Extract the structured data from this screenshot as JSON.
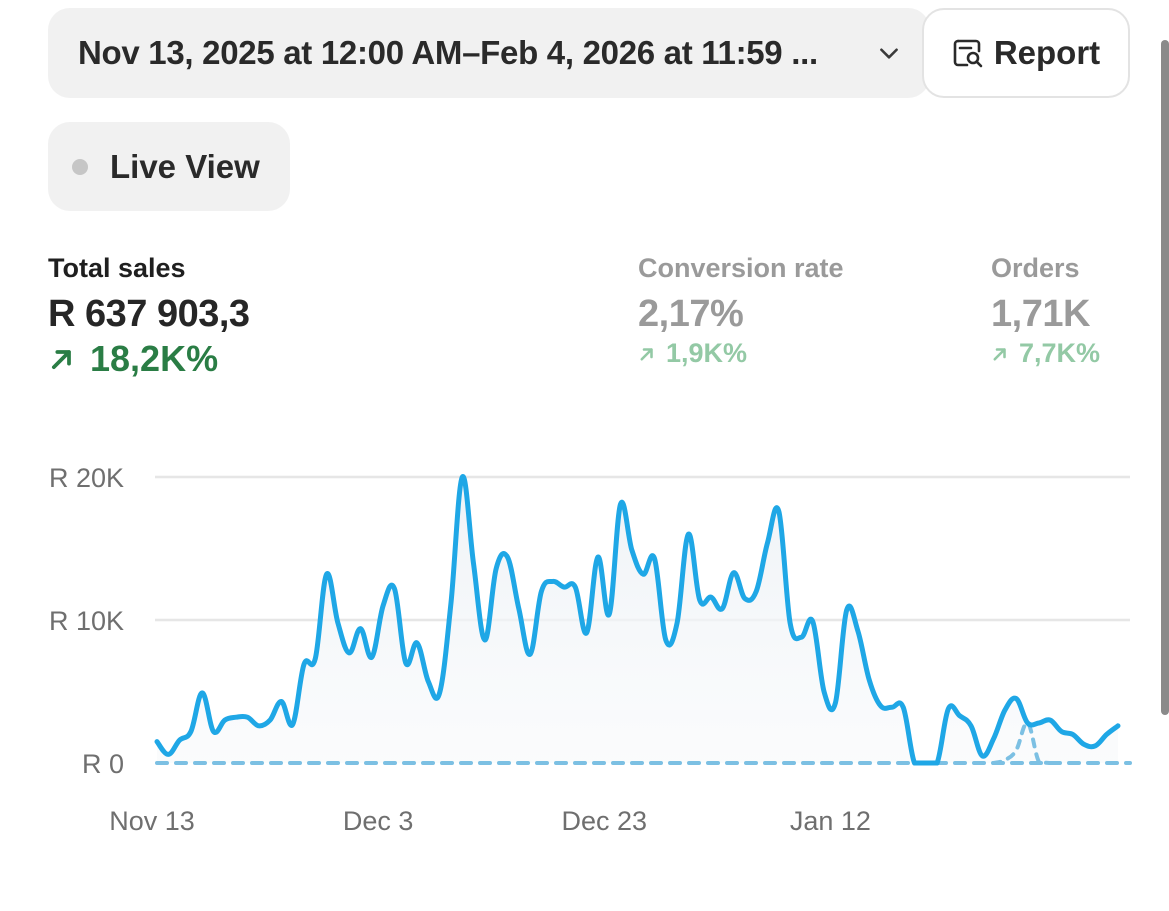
{
  "date_range": {
    "label": "Nov 13, 2025 at 12:00 AM–Feb 4, 2026 at 11:59 ..."
  },
  "report_button": {
    "label": "Report",
    "icon": "report-search-icon"
  },
  "live_view": {
    "label": "Live View"
  },
  "metrics": [
    {
      "label": "Total sales",
      "value": "R 637 903,3",
      "change": "18,2K%",
      "direction": "up"
    },
    {
      "label": "Conversion rate",
      "value": "2,17%",
      "change": "1,9K%",
      "direction": "up"
    },
    {
      "label": "Orders",
      "value": "1,71K",
      "change": "7,7K%",
      "direction": "up"
    }
  ],
  "colors": {
    "line": "#1fa7e6",
    "comparison": "#7cc0e3",
    "positive": "#2a7d45",
    "positive_muted": "#93c9a5"
  },
  "chart_data": {
    "type": "line",
    "x_tick_labels": [
      "Nov 13",
      "Dec 3",
      "Dec 23",
      "Jan 12"
    ],
    "y_tick_labels": [
      "R 20K",
      "R 10K",
      "R 0"
    ],
    "ylim": [
      0,
      20000
    ],
    "x_start": "2025-11-13",
    "grid": true,
    "series": [
      {
        "values": [
          1500,
          600,
          1600,
          2200,
          4900,
          2200,
          3000,
          3200,
          3200,
          2600,
          3000,
          4300,
          2700,
          6900,
          7300,
          13200,
          9800,
          7700,
          9400,
          7400,
          11000,
          12200,
          7000,
          8400,
          5700,
          4900,
          11200,
          20000,
          13900,
          8600,
          13600,
          14400,
          10800,
          7600,
          12000,
          12700,
          12300,
          12300,
          9100,
          14400,
          10400,
          18100,
          14900,
          13200,
          14300,
          8600,
          9800,
          16000,
          11400,
          11600,
          10800,
          13300,
          11500,
          12000,
          15400,
          17600,
          9800,
          8800,
          9900,
          5000,
          4200,
          10700,
          9200,
          5800,
          4000,
          3900,
          3900,
          0,
          0,
          0,
          3800,
          3300,
          2600,
          500,
          1700,
          3700,
          4500,
          2800,
          2800,
          3000,
          2200,
          2000,
          1300,
          1200,
          2000,
          2600
        ]
      },
      {
        "style": "dashed",
        "values": [
          0,
          0,
          0,
          0,
          0,
          0,
          0,
          0,
          0,
          0,
          0,
          0,
          0,
          0,
          0,
          0,
          0,
          0,
          0,
          0,
          0,
          0,
          0,
          0,
          0,
          0,
          0,
          0,
          0,
          0,
          0,
          0,
          0,
          0,
          0,
          0,
          0,
          0,
          0,
          0,
          0,
          0,
          0,
          0,
          0,
          0,
          0,
          0,
          0,
          0,
          0,
          0,
          0,
          0,
          0,
          0,
          0,
          0,
          0,
          0,
          0,
          0,
          0,
          0,
          0,
          0,
          0,
          0,
          0,
          0,
          0,
          0,
          0,
          0,
          0,
          200,
          900,
          2800,
          100,
          0,
          0,
          0,
          0,
          0,
          0,
          0
        ]
      }
    ]
  }
}
